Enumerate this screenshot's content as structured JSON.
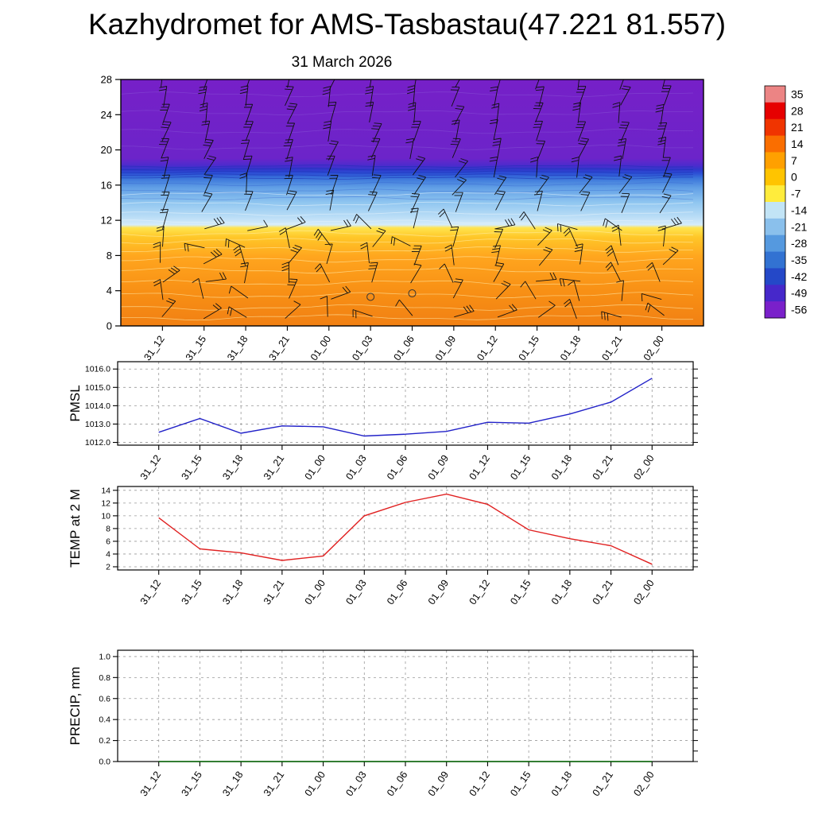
{
  "title": "Kazhydromet for AMS-Tasbastau(47.221 81.557)",
  "subtitle": "31 March 2026",
  "time_labels": [
    "31_12",
    "31_15",
    "31_18",
    "31_21",
    "01_00",
    "01_03",
    "01_06",
    "01_09",
    "01_12",
    "01_15",
    "01_18",
    "01_21",
    "02_00"
  ],
  "chart_data": [
    {
      "id": "cross-section",
      "type": "heatmap",
      "title": "31 March 2026",
      "x": [
        "31_12",
        "31_15",
        "31_18",
        "31_21",
        "01_00",
        "01_03",
        "01_06",
        "01_09",
        "01_12",
        "01_15",
        "01_18",
        "01_21",
        "02_00"
      ],
      "ylim": [
        0,
        28
      ],
      "yticks": [
        0,
        4,
        8,
        12,
        16,
        20,
        24,
        28
      ],
      "overlay": "wind-barbs",
      "calm_markers": [
        {
          "time_index": 5,
          "level": 3.3
        },
        {
          "time_index": 6,
          "level": 3.7
        }
      ],
      "gradient_stops": [
        [
          0.0,
          "#7620c8"
        ],
        [
          0.32,
          "#6c24c9"
        ],
        [
          0.35,
          "#4b2ccd"
        ],
        [
          0.365,
          "#3038cc"
        ],
        [
          0.38,
          "#2c4ed4"
        ],
        [
          0.4,
          "#3a74da"
        ],
        [
          0.44,
          "#62a0e6"
        ],
        [
          0.5,
          "#90c6f0"
        ],
        [
          0.555,
          "#b8dcf6"
        ],
        [
          0.59,
          "#d6ecfa"
        ],
        [
          0.602,
          "#ffe44e"
        ],
        [
          0.64,
          "#ffc728"
        ],
        [
          0.72,
          "#ffa51e"
        ],
        [
          0.86,
          "#f89015"
        ],
        [
          1.0,
          "#f18013"
        ]
      ],
      "band_contour_colors": {
        "warm": "#fff0b0",
        "cold_stripes": "#1c2fb4",
        "mid_blue": "#2a55c8",
        "light_blue": "#eaf5fc",
        "purple": "#9a7ae0"
      },
      "colorbar": {
        "tick_labels": [
          "35",
          "28",
          "21",
          "14",
          "7",
          "0",
          "-7",
          "-14",
          "-21",
          "-28",
          "-35",
          "-42",
          "-49",
          "-56"
        ],
        "colors": [
          "#ec8484",
          "#e60000",
          "#f03400",
          "#fa6e00",
          "#ffa000",
          "#ffc400",
          "#ffec3c",
          "#c2e4f6",
          "#8ac0ec",
          "#5599df",
          "#3272d2",
          "#2448c8",
          "#4628ca",
          "#7a20ca"
        ]
      }
    },
    {
      "id": "pmsl",
      "type": "line",
      "ylabel": "PMSL",
      "line_color": "#2121c8",
      "x": [
        "31_12",
        "31_15",
        "31_18",
        "31_21",
        "01_00",
        "01_03",
        "01_06",
        "01_09",
        "01_12",
        "01_15",
        "01_18",
        "01_21",
        "02_00"
      ],
      "values": [
        1012.55,
        1013.3,
        1012.5,
        1012.9,
        1012.85,
        1012.35,
        1012.45,
        1012.6,
        1013.1,
        1013.05,
        1013.55,
        1014.2,
        1015.5
      ],
      "ylim": [
        1011.85,
        1016.4
      ],
      "yticks": [
        1012,
        1013,
        1014,
        1015,
        1016
      ],
      "ytick_labels": [
        "1012.0",
        "1013.0",
        "1014.0",
        "1015.0",
        "1016.0"
      ],
      "minor_step": 0.5,
      "grid": true
    },
    {
      "id": "temp2m",
      "type": "line",
      "ylabel": "TEMP at 2 M",
      "line_color": "#e02020",
      "x": [
        "31_12",
        "31_15",
        "31_18",
        "31_21",
        "01_00",
        "01_03",
        "01_06",
        "01_09",
        "01_12",
        "01_15",
        "01_18",
        "01_21",
        "02_00"
      ],
      "values": [
        9.7,
        4.8,
        4.2,
        3.0,
        3.7,
        10.0,
        12.1,
        13.4,
        11.8,
        7.8,
        6.4,
        5.3,
        2.4
      ],
      "ylim": [
        1.5,
        14.6
      ],
      "yticks": [
        2,
        4,
        6,
        8,
        10,
        12,
        14
      ],
      "ytick_labels": [
        "2",
        "4",
        "6",
        "8",
        "10",
        "12",
        "14"
      ],
      "minor_step": 1,
      "grid": true
    },
    {
      "id": "precip",
      "type": "line",
      "ylabel": "PRECIP, mm",
      "line_color": "#006400",
      "x": [
        "31_12",
        "31_15",
        "31_18",
        "31_21",
        "01_00",
        "01_03",
        "01_06",
        "01_09",
        "01_12",
        "01_15",
        "01_18",
        "01_21",
        "02_00"
      ],
      "values": [
        0,
        0,
        0,
        0,
        0,
        0,
        0,
        0,
        0,
        0,
        0,
        0,
        0
      ],
      "ylim": [
        0,
        1.06
      ],
      "yticks": [
        0,
        0.2,
        0.4,
        0.6,
        0.8,
        1.0
      ],
      "ytick_labels": [
        "0.0",
        "0.2",
        "0.4",
        "0.6",
        "0.8",
        "1.0"
      ],
      "minor_step": 0.1,
      "grid": true
    }
  ]
}
